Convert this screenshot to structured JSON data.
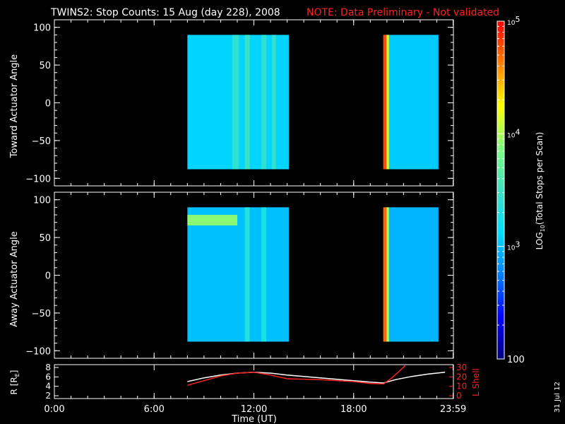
{
  "chart_data": {
    "title": "TWINS2: Stop Counts: 15 Aug (day 228), 2008",
    "note": "NOTE: Data Preliminary - Not validated",
    "date_stamp": "31 Jul 12",
    "colorbar": {
      "label": "LOG10(Total Stops per Scan)",
      "label_main": "LOG",
      "label_sub": "10",
      "label_tail": "(Total Stops per Scan)",
      "scale": "log",
      "range": [
        100,
        100000
      ],
      "ticks": [
        {
          "value": 100000,
          "base": "10",
          "exp": "5"
        },
        {
          "value": 10000,
          "base": "10",
          "exp": "4"
        },
        {
          "value": 1000,
          "base": "10",
          "exp": "3"
        },
        {
          "value": 100,
          "base": "100",
          "exp": ""
        }
      ],
      "colors": [
        "#00007f",
        "#0000ff",
        "#0080ff",
        "#00e0ff",
        "#40e0c0",
        "#80ff80",
        "#ffff00",
        "#ff8000",
        "#ff0000"
      ]
    },
    "panels": [
      {
        "type": "heatmap",
        "ylabel": "Toward Actuator Angle",
        "ylim": [
          -110,
          110
        ],
        "yticks": [
          "100",
          "50",
          "0",
          "−50",
          "−100"
        ],
        "ytick_values": [
          100,
          50,
          0,
          -50,
          -100
        ],
        "blocks": [
          {
            "t_start": 8.0,
            "t_end": 14.1,
            "angle_min": -88,
            "angle_max": 90,
            "base_value": 1200,
            "stripes": [
              {
                "t": 10.9,
                "width": 0.4,
                "value": 2600
              },
              {
                "t": 11.6,
                "width": 0.3,
                "value": 3000
              },
              {
                "t": 12.6,
                "width": 0.3,
                "value": 2400
              },
              {
                "t": 13.2,
                "width": 0.25,
                "value": 2800
              }
            ]
          },
          {
            "t_start": 19.8,
            "t_end": 23.1,
            "angle_min": -88,
            "angle_max": 90,
            "base_value": 1100,
            "stripes": [
              {
                "t": 19.88,
                "width": 0.2,
                "value": 60000
              },
              {
                "t": 20.05,
                "width": 0.15,
                "value": 12000
              }
            ]
          }
        ]
      },
      {
        "type": "heatmap",
        "ylabel": "Away Actuator Angle",
        "ylim": [
          -110,
          110
        ],
        "yticks": [
          "100",
          "50",
          "0",
          "−50",
          "−100"
        ],
        "ytick_values": [
          100,
          50,
          0,
          -50,
          -100
        ],
        "blocks": [
          {
            "t_start": 8.0,
            "t_end": 14.1,
            "angle_min": -88,
            "angle_max": 90,
            "base_value": 1000,
            "stripes": [
              {
                "t": 11.6,
                "width": 0.3,
                "value": 2200
              },
              {
                "t": 12.6,
                "width": 0.3,
                "value": 1900
              }
            ],
            "hot_band": {
              "angle": 73,
              "height": 14,
              "t_start": 8.0,
              "t_end": 11.0,
              "value": 9000
            }
          },
          {
            "t_start": 19.8,
            "t_end": 23.1,
            "angle_min": -88,
            "angle_max": 90,
            "base_value": 900,
            "stripes": [
              {
                "t": 19.88,
                "width": 0.2,
                "value": 50000
              },
              {
                "t": 20.05,
                "width": 0.15,
                "value": 9000
              }
            ]
          }
        ]
      },
      {
        "type": "line",
        "ylabel_left": "R [R",
        "ylabel_left_sub": "E",
        "ylabel_left_tail": "]",
        "ylabel_right": "L Shell",
        "ylim_left": [
          2,
          8
        ],
        "ylim_right": [
          0,
          30
        ],
        "yticks_left": [
          "8",
          "6",
          "4",
          "2"
        ],
        "ytick_values_left": [
          8,
          6,
          4,
          2
        ],
        "yticks_right": [
          "30",
          "20",
          "10",
          "0"
        ],
        "ytick_values_right": [
          30,
          20,
          10,
          0
        ],
        "series": [
          {
            "axis": "left",
            "color": "#ffffff",
            "x": [
              8.0,
              9.0,
              10.0,
              11.0,
              12.0,
              13.0,
              14.0,
              16.0,
              18.0,
              19.0,
              19.8,
              20.5,
              21.5,
              22.5,
              23.5
            ],
            "y": [
              5.0,
              5.8,
              6.4,
              6.8,
              7.0,
              6.8,
              6.4,
              5.8,
              5.2,
              4.9,
              4.7,
              5.4,
              6.1,
              6.6,
              7.0
            ]
          },
          {
            "axis": "right",
            "color": "#ff2020",
            "x": [
              8.0,
              9.0,
              10.0,
              11.0,
              12.0,
              13.0,
              14.0,
              16.0,
              18.0,
              19.0,
              19.8,
              20.3,
              20.8,
              21.1
            ],
            "y": [
              11.0,
              16.0,
              21.0,
              24.0,
              25.0,
              22.0,
              18.0,
              17.0,
              15.0,
              13.0,
              12.5,
              19.0,
              27.0,
              32.0
            ]
          }
        ]
      }
    ],
    "xaxis": {
      "label": "Time (UT)",
      "xlim": [
        0,
        24
      ],
      "ticks": [
        "0:00",
        "6:00",
        "12:00",
        "18:00",
        "23:59"
      ],
      "tick_values": [
        0,
        6,
        12,
        18,
        23.983
      ]
    }
  }
}
